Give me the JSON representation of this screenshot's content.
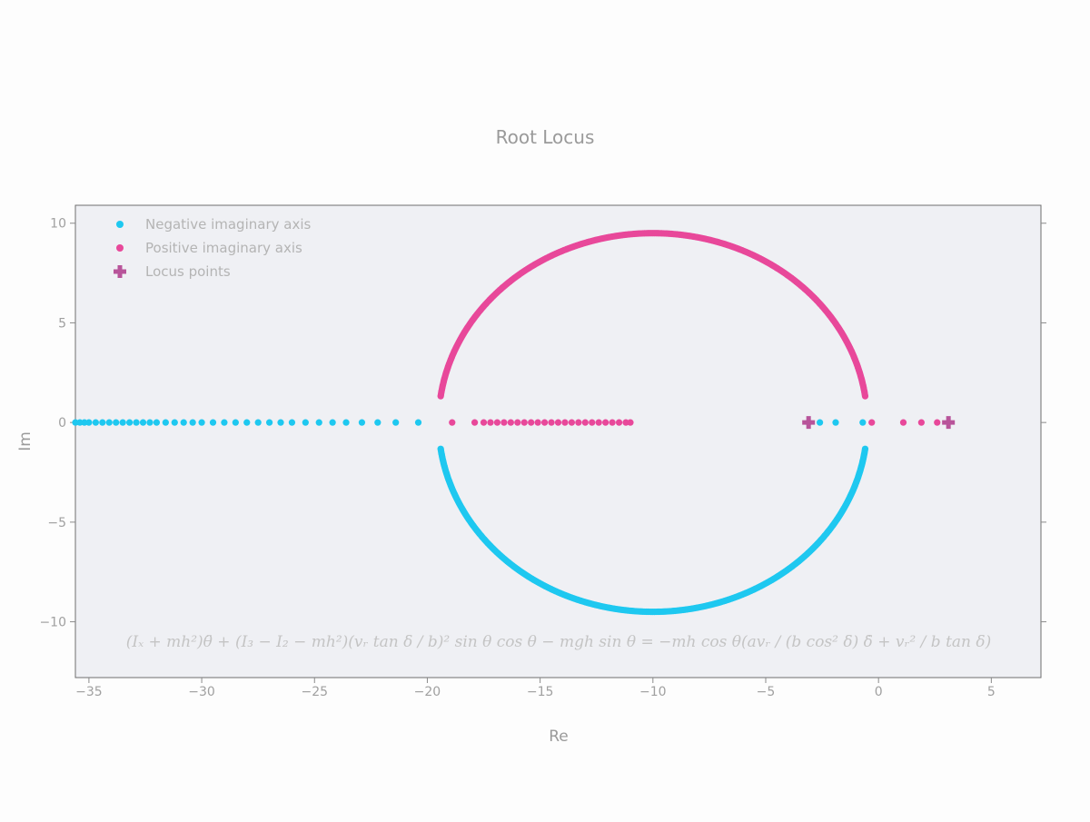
{
  "chart_data": {
    "type": "scatter",
    "title": "Root Locus",
    "xlabel": "Re",
    "ylabel": "Im",
    "xlim": [
      -35.6,
      7.2
    ],
    "ylim": [
      -12.8,
      10.9
    ],
    "x_ticks": [
      -35,
      -30,
      -25,
      -20,
      -15,
      -10,
      -5,
      0,
      5
    ],
    "y_ticks": [
      10,
      5,
      0,
      -5,
      -10
    ],
    "grid": false,
    "legend_position": "top-left",
    "series": [
      {
        "name": "Negative imaginary axis",
        "marker": "circle",
        "color": "#1ec8f0",
        "circle": {
          "center": [
            -10,
            0
          ],
          "radius": 9.5,
          "theta_range_deg": [
            188,
            352
          ]
        },
        "real_axis_points": [
          -35.6,
          -35.4,
          -35.2,
          -35.0,
          -34.7,
          -34.4,
          -34.1,
          -33.8,
          -33.5,
          -33.2,
          -32.9,
          -32.6,
          -32.3,
          -32.0,
          -31.6,
          -31.2,
          -30.8,
          -30.4,
          -30.0,
          -29.5,
          -29.0,
          -28.5,
          -28.0,
          -27.5,
          -27.0,
          -26.5,
          -26.0,
          -25.4,
          -24.8,
          -24.2,
          -23.6,
          -22.9,
          -22.2,
          -21.4,
          -20.4,
          -3.1,
          -2.6,
          -1.9,
          -0.7
        ]
      },
      {
        "name": "Positive imaginary axis",
        "marker": "circle",
        "color": "#e8489a",
        "circle": {
          "center": [
            -10,
            0
          ],
          "radius": 9.5,
          "theta_range_deg": [
            8,
            172
          ]
        },
        "real_axis_points": [
          -18.9,
          -17.9,
          -17.5,
          -17.2,
          -16.9,
          -16.6,
          -16.3,
          -16.0,
          -15.7,
          -15.4,
          -15.1,
          -14.8,
          -14.5,
          -14.2,
          -13.9,
          -13.6,
          -13.3,
          -13.0,
          -12.7,
          -12.4,
          -12.1,
          -11.8,
          -11.5,
          -11.2,
          -11.0,
          -0.3,
          1.1,
          1.9,
          2.6
        ]
      },
      {
        "name": "Locus points",
        "marker": "cross",
        "color": "#b8549a",
        "points": [
          [
            -3.1,
            0
          ],
          [
            3.1,
            0
          ]
        ]
      }
    ],
    "annotation": "(Iₓ + mh²)θ̈ + (I₃ − I₂ − mh²)(vᵣ tan δ / b)² sin θ cos θ − mgh sin θ = −mh cos θ(avᵣ / (b cos² δ) δ̇ + vᵣ² / b tan δ)"
  }
}
